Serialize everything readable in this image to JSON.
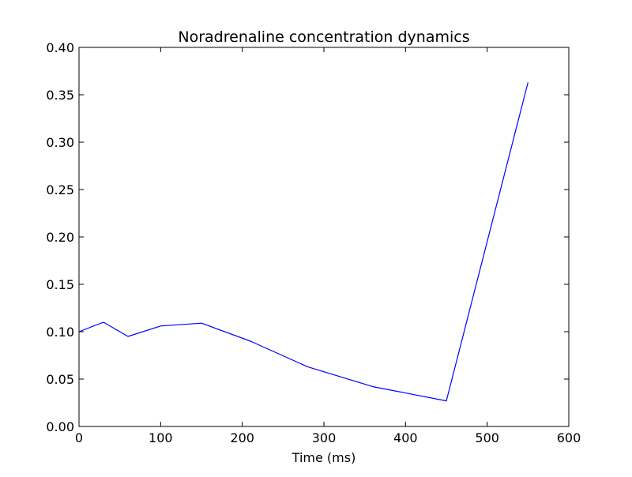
{
  "chart_data": {
    "type": "line",
    "title": "Noradrenaline concentration dynamics",
    "xlabel": "Time (ms)",
    "ylabel": "",
    "xlim": [
      0,
      600
    ],
    "ylim": [
      0,
      0.4
    ],
    "x_ticks": [
      "0",
      "100",
      "200",
      "300",
      "400",
      "500",
      "600"
    ],
    "y_ticks": [
      "0.00",
      "0.05",
      "0.10",
      "0.15",
      "0.20",
      "0.25",
      "0.30",
      "0.35",
      "0.40"
    ],
    "grid": false,
    "legend": "none",
    "series": [
      {
        "color": "#0000ff",
        "x": [
          0,
          30,
          60,
          100,
          150,
          210,
          280,
          360,
          450,
          550
        ],
        "y": [
          0.1,
          0.11,
          0.095,
          0.106,
          0.109,
          0.09,
          0.063,
          0.042,
          0.027,
          0.363
        ]
      }
    ]
  }
}
